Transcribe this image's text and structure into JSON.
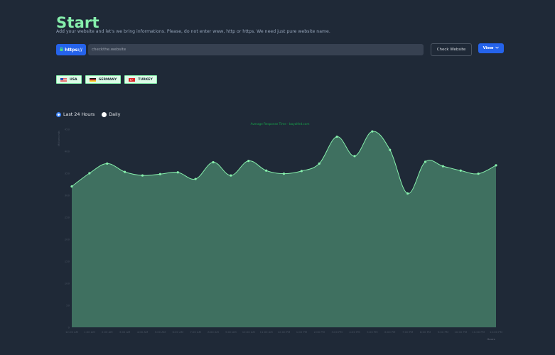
{
  "header": {
    "title": "Start",
    "subtitle": "Add your website and let's we bring informations. Please, do not enter www, http or https. We need just pure website name."
  },
  "form": {
    "protocol_label": "https://",
    "url_value": "checkthe.website",
    "check_button": "Check Website",
    "view_button": "View"
  },
  "locations": [
    {
      "label": "USA",
      "flag": "us-flag"
    },
    {
      "label": "GERMANY",
      "flag": "germany-flag"
    },
    {
      "label": "TURKEY",
      "flag": "turkey-flag"
    }
  ],
  "range": {
    "options": [
      "Last 24 Hours",
      "Daily"
    ],
    "selected": "Last 24 Hours"
  },
  "colors": {
    "accent": "#2563eb",
    "title": "#86efac",
    "area_fill": "#3f7060",
    "area_line": "#86efac"
  },
  "chart_data": {
    "type": "area",
    "title": "Average Response Time - bayalfed.com",
    "ylabel": "Milliseconds",
    "xlabel": "Hours",
    "ylim": [
      0,
      450
    ],
    "yticks": [
      0,
      50,
      100,
      150,
      200,
      250,
      300,
      350,
      400,
      450
    ],
    "categories": [
      "12:00 AM",
      "1:00 AM",
      "2:00 AM",
      "3:00 AM",
      "4:00 AM",
      "5:00 AM",
      "6:00 AM",
      "7:00 AM",
      "8:00 AM",
      "9:00 AM",
      "10:00 AM",
      "11:00 AM",
      "12:00 PM",
      "1:00 PM",
      "2:00 PM",
      "3:00 PM",
      "4:00 PM",
      "5:00 PM",
      "6:00 PM",
      "7:00 PM",
      "8:00 PM",
      "9:00 PM",
      "10:00 PM",
      "11:00 PM",
      "12:00 PM"
    ],
    "values": [
      320,
      350,
      372,
      353,
      345,
      348,
      352,
      337,
      375,
      345,
      378,
      356,
      349,
      355,
      372,
      433,
      389,
      445,
      403,
      304,
      376,
      366,
      356,
      349,
      368
    ],
    "grid": false,
    "legend": "none"
  }
}
